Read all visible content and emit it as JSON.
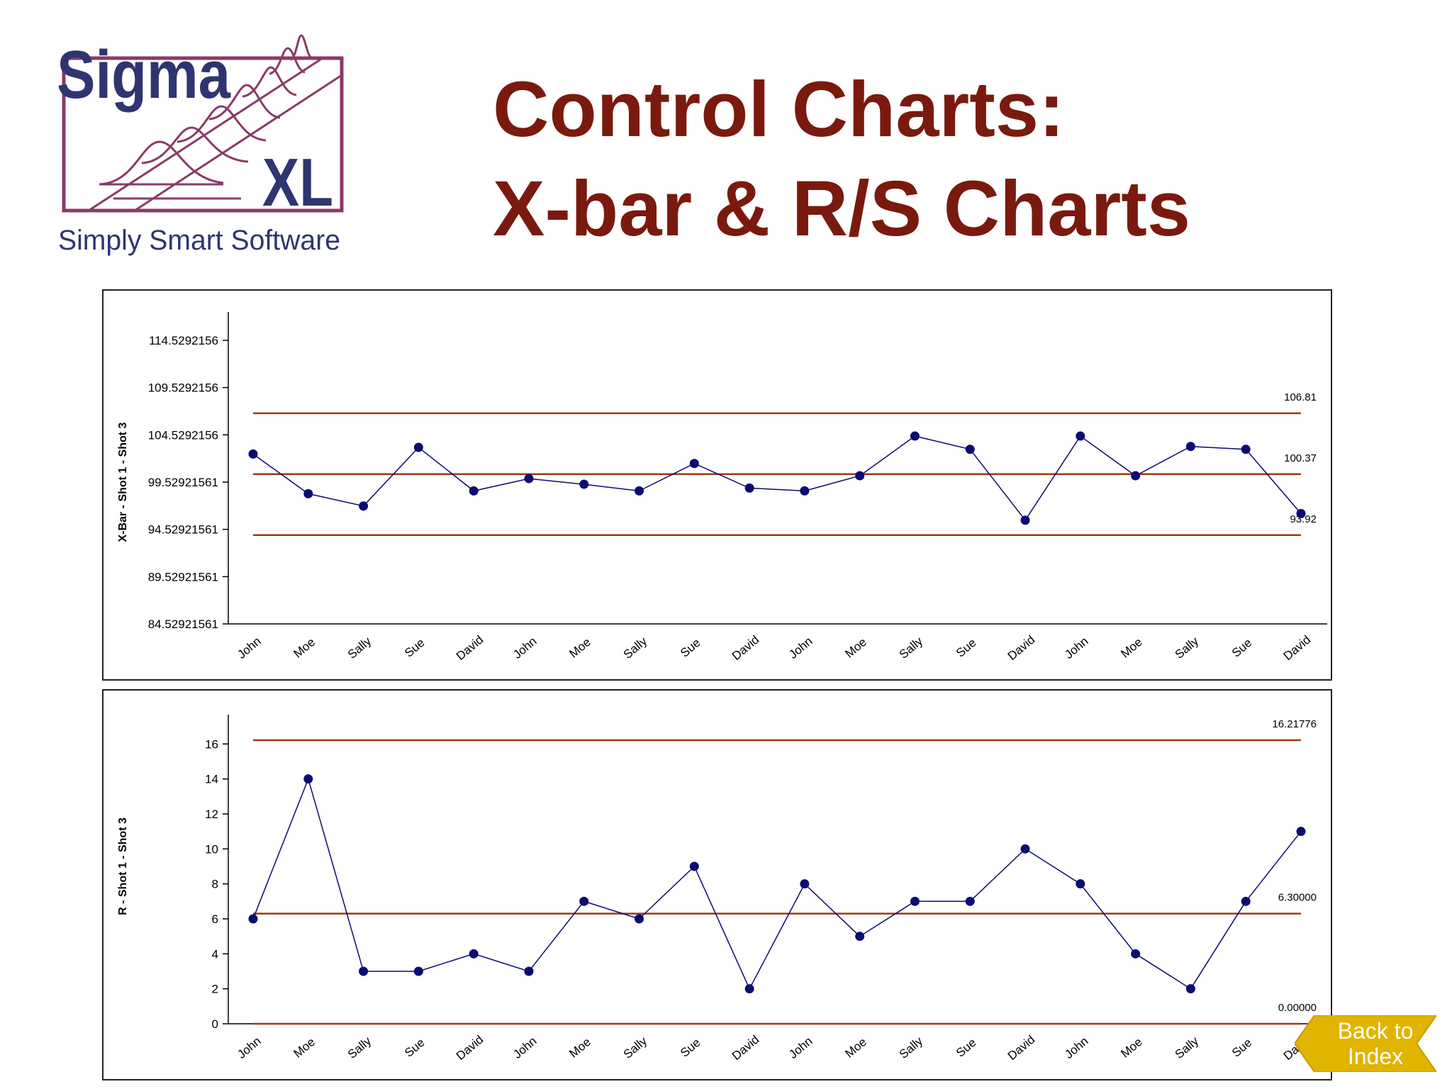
{
  "logo": {
    "brand": "Sigma",
    "suffix": "XL",
    "tagline": "Simply Smart Software"
  },
  "title": {
    "line1": "Control Charts:",
    "line2": "X-bar & R/S Charts"
  },
  "nav": {
    "back_line1": "Back to",
    "back_line2": "Index"
  },
  "colors": {
    "title": "#7a1a0e",
    "limit_line": "#9b3a12",
    "series": "#0b0b72",
    "logo_navy": "#2e3570",
    "logo_frame": "#8a3a68",
    "button": "#e0b400"
  },
  "chart_data": [
    {
      "type": "line",
      "ylabel": "X-Bar - Shot 1 - Shot 3",
      "categories": [
        "John",
        "Moe",
        "Sally",
        "Sue",
        "David",
        "John",
        "Moe",
        "Sally",
        "Sue",
        "David",
        "John",
        "Moe",
        "Sally",
        "Sue",
        "David",
        "John",
        "Moe",
        "Sally",
        "Sue",
        "David"
      ],
      "values": [
        102.5,
        98.3,
        97.0,
        103.2,
        98.6,
        99.9,
        99.3,
        98.6,
        101.5,
        98.9,
        98.6,
        100.2,
        104.4,
        103.0,
        95.5,
        104.4,
        100.2,
        103.3,
        103.0,
        96.2
      ],
      "yticks": [
        "84.52921561",
        "89.52921561",
        "94.52921561",
        "99.52921561",
        "104.5292156",
        "109.5292156",
        "114.5292156"
      ],
      "ytick_values": [
        84.52921561,
        89.52921561,
        94.52921561,
        99.52921561,
        104.5292156,
        109.5292156,
        114.5292156
      ],
      "ylim": [
        84.52921561,
        114.5292156
      ],
      "control_limits": [
        {
          "label": "106.81",
          "value": 106.81
        },
        {
          "label": "100.37",
          "value": 100.37
        },
        {
          "label": "93.92",
          "value": 93.92
        }
      ]
    },
    {
      "type": "line",
      "ylabel": "R - Shot 1 - Shot 3",
      "categories": [
        "John",
        "Moe",
        "Sally",
        "Sue",
        "David",
        "John",
        "Moe",
        "Sally",
        "Sue",
        "David",
        "John",
        "Moe",
        "Sally",
        "Sue",
        "David",
        "John",
        "Moe",
        "Sally",
        "Sue",
        "David"
      ],
      "values": [
        6,
        14,
        3,
        3,
        4,
        3,
        7,
        6,
        9,
        2,
        8,
        5,
        7,
        7,
        10,
        8,
        4,
        2,
        7,
        11
      ],
      "yticks": [
        "0",
        "2",
        "4",
        "6",
        "8",
        "10",
        "12",
        "14",
        "16"
      ],
      "ytick_values": [
        0,
        2,
        4,
        6,
        8,
        10,
        12,
        14,
        16
      ],
      "ylim": [
        0,
        18
      ],
      "control_limits": [
        {
          "label": "16.21776",
          "value": 16.21776
        },
        {
          "label": "6.30000",
          "value": 6.3
        },
        {
          "label": "0.00000",
          "value": 0
        }
      ]
    }
  ]
}
